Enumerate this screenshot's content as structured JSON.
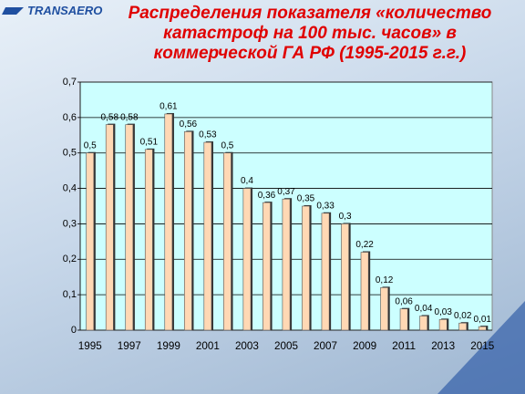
{
  "logo": "TRANSAERO",
  "chart_data": {
    "type": "bar",
    "title": "Распределения показателя «количество катастроф на 100 тыс. часов» в коммерческой ГА РФ (1995-2015 г.г.)",
    "categories": [
      "1995",
      null,
      "1997",
      null,
      "1999",
      null,
      "2001",
      null,
      "2003",
      null,
      "2005",
      null,
      "2007",
      null,
      "2009",
      null,
      "2011",
      null,
      "2013",
      null,
      "2015"
    ],
    "values": [
      0.5,
      0.58,
      0.58,
      0.51,
      0.61,
      0.56,
      0.53,
      0.5,
      0.4,
      0.36,
      0.37,
      0.35,
      0.33,
      0.3,
      0.22,
      0.12,
      0.06,
      0.04,
      0.03,
      0.02,
      0.01
    ],
    "value_labels": [
      "0,5",
      "0,58",
      "0,58",
      "0,51",
      "0,61",
      "0,56",
      "0,53",
      "0,5",
      "0,4",
      "0,36",
      "0,37",
      "0,35",
      "0,33",
      "0,3",
      "0,22",
      "0,12",
      "0,06",
      "0,04",
      "0,03",
      "0,02",
      "0,01"
    ],
    "color": "#ffd8b4",
    "ylim": [
      0,
      0.7
    ],
    "yticks": [
      0,
      {
        "value": 0.1,
        "label": "0,1"
      },
      {
        "value": 0.2,
        "label": "0,2"
      },
      {
        "value": 0.3,
        "label": "0,3"
      },
      {
        "value": 0.4,
        "label": "0,4"
      },
      {
        "value": 0.5,
        "label": "0,5"
      },
      {
        "value": 0.6,
        "label": "0,6"
      },
      {
        "value": 0.7,
        "label": "0,7"
      }
    ],
    "grid": true
  }
}
